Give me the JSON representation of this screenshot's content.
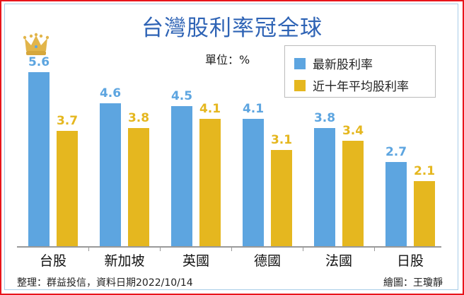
{
  "chart_data": {
    "type": "bar",
    "title": "台灣股利率冠全球",
    "unit_label": "單位：%",
    "categories": [
      "台股",
      "新加坡",
      "英國",
      "德國",
      "法國",
      "日股"
    ],
    "series": [
      {
        "name": "最新股利率",
        "color": "#5da5e0",
        "values": [
          5.6,
          4.6,
          4.5,
          4.1,
          3.8,
          2.7
        ]
      },
      {
        "name": "近十年平均股利率",
        "color": "#e5b71f",
        "values": [
          3.7,
          3.8,
          4.1,
          3.1,
          3.4,
          2.1
        ]
      }
    ],
    "xlabel": "",
    "ylabel": "",
    "ylim": [
      0,
      5.6
    ],
    "grid": false,
    "legend_position": "top-right",
    "annotations": [
      "crown icon above 台股 latest dividend yield bar"
    ]
  },
  "title": "台灣股利率冠全球",
  "unit": "單位：%",
  "legend": [
    "最新股利率",
    "近十年平均股利率"
  ],
  "labels": {
    "blue": [
      "5.6",
      "4.6",
      "4.5",
      "4.1",
      "3.8",
      "2.7"
    ],
    "gold": [
      "3.7",
      "3.8",
      "4.1",
      "3.1",
      "3.4",
      "2.1"
    ]
  },
  "categories": [
    "台股",
    "新加坡",
    "英國",
    "德國",
    "法國",
    "日股"
  ],
  "footer": {
    "source": "整理：群益投信，資料日期2022/10/14",
    "credit": "繪圖：王瓊靜"
  }
}
